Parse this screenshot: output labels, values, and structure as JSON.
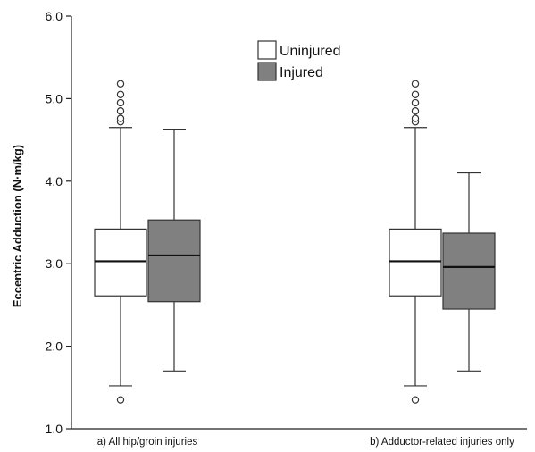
{
  "chart_data": {
    "type": "box",
    "ylabel": "Eccentric Adduction (N·m/kg)",
    "ylim": [
      1.0,
      6.0
    ],
    "yticks": [
      "1.0",
      "2.0",
      "3.0",
      "4.0",
      "5.0",
      "6.0"
    ],
    "ytick_values": [
      1.0,
      2.0,
      3.0,
      4.0,
      5.0,
      6.0
    ],
    "categories": [
      "a) All hip/groin injuries",
      "b) Adductor-related injuries only"
    ],
    "legend": {
      "placement": "top-center"
    },
    "series": [
      {
        "name": "Uninjured",
        "color": "#ffffff",
        "boxes": [
          {
            "whisker_low": 1.52,
            "q1": 2.61,
            "median": 3.03,
            "q3": 3.42,
            "whisker_high": 4.65,
            "outliers": [
              1.35,
              4.72,
              4.76,
              4.85,
              4.95,
              5.05,
              5.18
            ]
          },
          {
            "whisker_low": 1.52,
            "q1": 2.61,
            "median": 3.03,
            "q3": 3.42,
            "whisker_high": 4.65,
            "outliers": [
              1.35,
              4.72,
              4.76,
              4.85,
              4.95,
              5.05,
              5.18
            ]
          }
        ]
      },
      {
        "name": "Injured",
        "color": "#808080",
        "boxes": [
          {
            "whisker_low": 1.7,
            "q1": 2.54,
            "median": 3.1,
            "q3": 3.53,
            "whisker_high": 4.63,
            "outliers": []
          },
          {
            "whisker_low": 1.7,
            "q1": 2.45,
            "median": 2.96,
            "q3": 3.37,
            "whisker_high": 4.1,
            "outliers": []
          }
        ]
      }
    ]
  }
}
